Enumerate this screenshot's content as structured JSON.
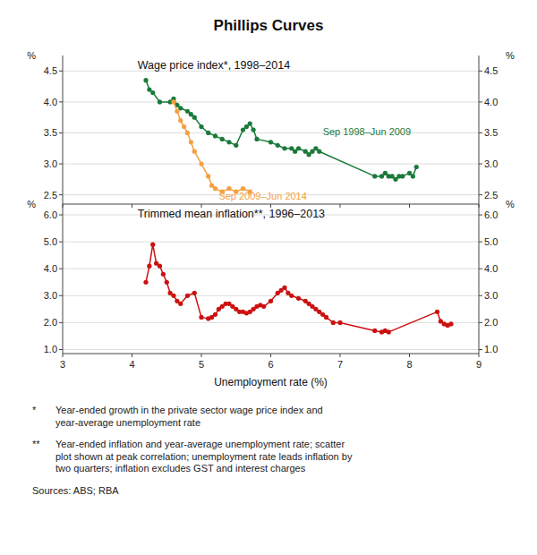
{
  "chart_data": [
    {
      "type": "line",
      "title": "Phillips Curves",
      "subtitle": "Wage price index*, 1998–2014",
      "ylabel": "%",
      "xlim": [
        3,
        9
      ],
      "xticks": [
        3,
        4,
        5,
        6,
        7,
        8,
        9
      ],
      "ylim": [
        2.35,
        4.75
      ],
      "yticks": [
        2.5,
        {
          "value": 3.0,
          "label": "3.0"
        },
        3.5,
        {
          "value": 4.0,
          "label": "4.0"
        },
        4.5
      ],
      "grid": true,
      "tick_labels": "y",
      "marker": "circle",
      "line_style": "solid",
      "series": [
        {
          "name": "Sep 1998–Jun 2009",
          "color": "#1a7a3a",
          "x": [
            4.2,
            4.25,
            4.3,
            4.4,
            4.55,
            4.6,
            4.65,
            4.7,
            4.8,
            4.85,
            4.9,
            5.0,
            5.1,
            5.2,
            5.3,
            5.4,
            5.5,
            5.6,
            5.65,
            5.7,
            5.75,
            5.8,
            6.0,
            6.1,
            6.2,
            6.3,
            6.35,
            6.4,
            6.5,
            6.55,
            6.6,
            6.65,
            6.7,
            7.5,
            7.6,
            7.65,
            7.7,
            7.75,
            7.8,
            7.85,
            7.9,
            8.0,
            8.05,
            8.1
          ],
          "values": [
            4.35,
            4.2,
            4.15,
            4.0,
            4.0,
            4.05,
            3.95,
            3.9,
            3.85,
            3.8,
            3.75,
            3.6,
            3.5,
            3.45,
            3.4,
            3.35,
            3.3,
            3.55,
            3.6,
            3.65,
            3.55,
            3.4,
            3.35,
            3.3,
            3.25,
            3.25,
            3.2,
            3.25,
            3.2,
            3.15,
            3.2,
            3.25,
            3.2,
            2.8,
            2.8,
            2.85,
            2.8,
            2.8,
            2.75,
            2.8,
            2.8,
            2.85,
            2.8,
            2.95
          ]
        },
        {
          "name": "Sep 2009–Jun 2014",
          "color": "#f5a040",
          "x": [
            4.6,
            4.65,
            4.7,
            4.75,
            4.8,
            4.85,
            4.9,
            5.0,
            5.1,
            5.15,
            5.2,
            5.3,
            5.4,
            5.5,
            5.6,
            5.7
          ],
          "values": [
            4.0,
            3.85,
            3.7,
            3.6,
            3.5,
            3.35,
            3.2,
            3.0,
            2.8,
            2.65,
            2.6,
            2.55,
            2.6,
            2.55,
            2.6,
            2.55
          ]
        }
      ]
    },
    {
      "type": "line",
      "subtitle": "Trimmed mean inflation**, 1996–2013",
      "ylabel": "%",
      "xlabel": "Unemployment rate (%)",
      "xlim": [
        3,
        9
      ],
      "xticks": [
        3,
        4,
        5,
        6,
        7,
        8,
        9
      ],
      "ylim": [
        0.85,
        6.4
      ],
      "yticks": [
        {
          "value": 1.0,
          "label": "1.0"
        },
        {
          "value": 2.0,
          "label": "2.0"
        },
        {
          "value": 3.0,
          "label": "3.0"
        },
        {
          "value": 4.0,
          "label": "4.0"
        },
        {
          "value": 5.0,
          "label": "5.0"
        },
        {
          "value": 6.0,
          "label": "6.0"
        }
      ],
      "grid": true,
      "marker": "circle",
      "line_style": "solid",
      "series": [
        {
          "color": "#cc1111",
          "x": [
            4.2,
            4.25,
            4.3,
            4.35,
            4.4,
            4.45,
            4.5,
            4.55,
            4.6,
            4.65,
            4.7,
            4.8,
            4.9,
            5.0,
            5.1,
            5.15,
            5.2,
            5.25,
            5.3,
            5.35,
            5.4,
            5.45,
            5.5,
            5.55,
            5.6,
            5.65,
            5.7,
            5.75,
            5.8,
            5.85,
            5.9,
            6.0,
            6.1,
            6.15,
            6.2,
            6.25,
            6.3,
            6.4,
            6.5,
            6.55,
            6.6,
            6.65,
            6.7,
            6.75,
            6.8,
            6.9,
            7.0,
            7.5,
            7.6,
            7.65,
            7.7,
            8.4,
            8.45,
            8.5,
            8.55,
            8.6
          ],
          "values": [
            3.5,
            4.1,
            4.9,
            4.2,
            4.1,
            3.8,
            3.5,
            3.1,
            3.0,
            2.8,
            2.7,
            3.0,
            3.1,
            2.2,
            2.15,
            2.2,
            2.3,
            2.5,
            2.6,
            2.7,
            2.7,
            2.6,
            2.5,
            2.4,
            2.4,
            2.35,
            2.4,
            2.5,
            2.6,
            2.65,
            2.6,
            2.8,
            3.1,
            3.2,
            3.3,
            3.1,
            3.0,
            2.9,
            2.8,
            2.7,
            2.6,
            2.5,
            2.4,
            2.3,
            2.2,
            2.0,
            2.0,
            1.7,
            1.65,
            1.7,
            1.65,
            2.4,
            2.05,
            1.95,
            1.9,
            1.95
          ]
        }
      ],
      "annotations": [
        {
          "label": "*",
          "text": "Year-ended growth in the private sector wage price index and\nyear-average unemployment rate"
        },
        {
          "label": "**",
          "text": "Year-ended inflation and year-average unemployment rate; scatter\nplot shown at peak correlation; unemployment rate leads inflation by\ntwo quarters; inflation excludes GST and interest charges"
        },
        {
          "text": "Sources:  ABS; RBA"
        }
      ]
    }
  ]
}
